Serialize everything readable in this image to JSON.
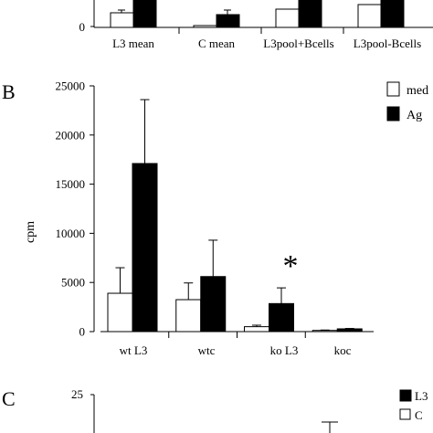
{
  "panel_a": {
    "y_tick": "0",
    "categories": [
      "L3 mean",
      "C mean",
      "L3pool+Bcells",
      "L3pool-Bcells"
    ]
  },
  "panel_b": {
    "letter": "B",
    "legend": {
      "med": "med",
      "ag": "Ag"
    }
  },
  "panel_c": {
    "letter": "C",
    "y_tick": "25",
    "legend": {
      "l3": "L3",
      "c": "C"
    }
  },
  "chart_data": {
    "type": "bar",
    "title": "",
    "xlabel": "",
    "ylabel": "cpm",
    "ylim": [
      0,
      25000
    ],
    "yticks": [
      0,
      5000,
      10000,
      15000,
      20000,
      25000
    ],
    "ytick_labels": [
      "0",
      "5000",
      "10000",
      "15000",
      "20000",
      "25000"
    ],
    "categories": [
      "wt L3",
      "wtc",
      "ko L3",
      "koc"
    ],
    "series": [
      {
        "name": "med",
        "values": [
          3900,
          3250,
          500,
          120
        ],
        "errors": [
          2600,
          1700,
          150,
          40
        ],
        "color": "#ffffff"
      },
      {
        "name": "Ag",
        "values": [
          17100,
          5600,
          2850,
          280
        ],
        "errors": [
          6500,
          3700,
          1600,
          40
        ],
        "color": "#000000"
      }
    ],
    "annotation": "*",
    "grid": false,
    "legend_position": "top-right"
  }
}
